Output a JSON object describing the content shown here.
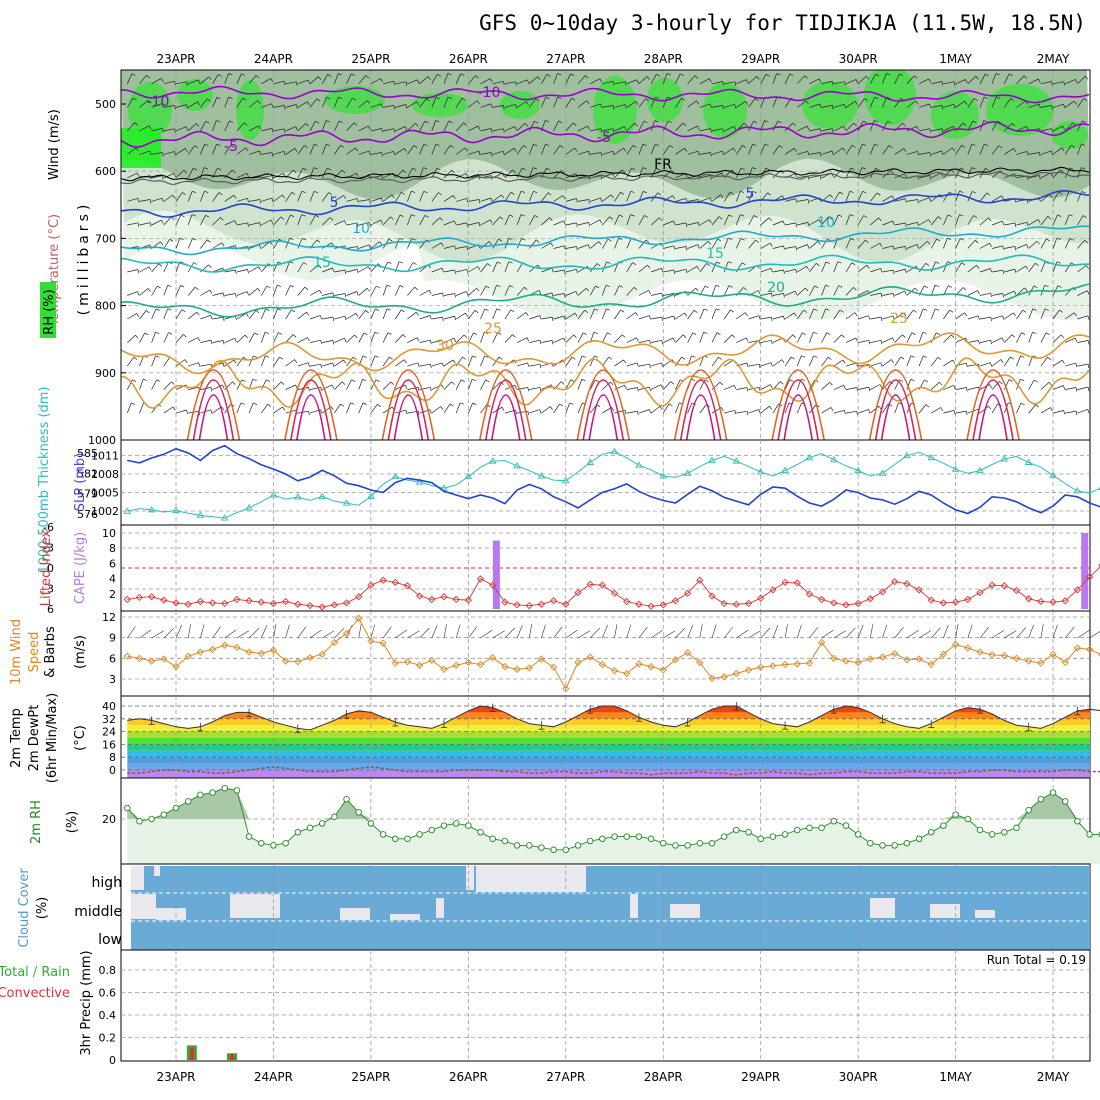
{
  "title": "GFS 0~10day 3-hourly for TIDJIKJA (11.5W, 18.5N)",
  "dates": [
    "23APR",
    "24APR",
    "25APR",
    "26APR",
    "27APR",
    "28APR",
    "29APR",
    "30APR",
    "1MAY",
    "2MAY"
  ],
  "colors": {
    "rh_green": "#33dd33",
    "rh_dark": "#7a9a7a",
    "temp_purple": "#9900cc",
    "temp_blue": "#2244cc",
    "temp_cyan": "#22aacc",
    "temp_teal": "#22aa88",
    "temp_orange": "#dd9933",
    "temp_red": "#dd2255",
    "slp": "#2244cc",
    "thick": "#33bbbb",
    "li": "#dd3333",
    "cape": "#bb77ee",
    "wind": "#dd8822",
    "cloud": "#6aaad6",
    "rh2m": "#228822"
  },
  "panels": {
    "upper": {
      "ylabel_wind": "Wind (m/s)",
      "ylabel_temp": "Temperature (°C)",
      "ylabel_rh": "RH (%)",
      "ylabel_mb": "(millibars)",
      "levels": [
        "500",
        "600",
        "700",
        "800",
        "900",
        "1000"
      ],
      "contour_labels": {
        "m10": "-10",
        "m5": "-5",
        "fr": "FR",
        "p5": "5",
        "p10": "10",
        "p15": "15",
        "p20": "20",
        "p25": "25",
        "p30": "30"
      }
    },
    "slp": {
      "ylabel_thick": "1000-500mb Thickness (dm)",
      "ylabel_slp": "SLP (mb)",
      "thick_ticks": [
        "585",
        "582",
        "579",
        "576"
      ],
      "slp_ticks": [
        "1011",
        "1008",
        "1005",
        "1002"
      ]
    },
    "cape": {
      "ylabel_li": "Lifted Index",
      "ylabel_cape": "CAPE (J/kg)",
      "li_ticks": [
        "-6",
        "-3",
        "0",
        "3",
        "6"
      ],
      "cape_ticks": [
        "10",
        "8",
        "6",
        "4",
        "2"
      ]
    },
    "wind": {
      "ylabel1": "10m Wind",
      "ylabel2": "Speed",
      "ylabel3": "& Barbs",
      "ylabel_unit": "(m/s)",
      "ticks": [
        "12",
        "9",
        "6",
        "3"
      ]
    },
    "temp2m": {
      "ylabel1": "2m Temp",
      "ylabel2": "2m DewPt",
      "ylabel3": "(6hr Min/Max)",
      "ylabel_unit": "(°C)",
      "ticks": [
        "40",
        "32",
        "24",
        "16",
        "8",
        "0"
      ]
    },
    "rh2m": {
      "ylabel": "2m RH",
      "ylabel_unit": "(%)",
      "ticks": [
        "20"
      ]
    },
    "cloud": {
      "ylabel": "Cloud Cover",
      "ylabel_unit": "(%)",
      "levels": [
        "high",
        "middle",
        "low"
      ]
    },
    "precip": {
      "ylabel_total": "Total / Rain",
      "ylabel_conv": "Convective",
      "ylabel_unit": "3hr Precip (mm)",
      "ticks": [
        "0.8",
        "0.6",
        "0.4",
        "0.2",
        "0"
      ],
      "run_total": "Run Total = 0.19"
    }
  },
  "chart_data": {
    "type": "line",
    "x_unit": "3-hourly steps from 22APR 12Z",
    "slp": [
      1010.2,
      1009.8,
      1010.6,
      1011.2,
      1012.1,
      1011.4,
      1010.2,
      1011.8,
      1012.6,
      1011.3,
      1010.5,
      1009.5,
      1008.8,
      1008.0,
      1006.9,
      1007.5,
      1008.6,
      1007.7,
      1006.5,
      1006.1,
      1005.4,
      1005.0,
      1006.6,
      1007.3,
      1007.0,
      1006.6,
      1005.2,
      1004.6,
      1004.0,
      1004.6,
      1004.1,
      1003.2,
      1005.4,
      1006.3,
      1005.6,
      1004.3,
      1003.5,
      1002.5,
      1003.8,
      1005.0,
      1005.6,
      1006.4,
      1005.2,
      1004.3,
      1003.7,
      1003.3,
      1004.7,
      1006.0,
      1005.3,
      1004.2,
      1003.6,
      1003.0,
      1004.7,
      1005.9,
      1005.7,
      1004.4,
      1003.3,
      1002.8,
      1003.9,
      1005.4,
      1005.0,
      1004.1,
      1003.8,
      1003.1,
      1004.0,
      1005.2,
      1004.6,
      1003.3,
      1002.2,
      1001.6,
      1002.6,
      1004.3,
      1004.1,
      1003.5,
      1002.5,
      1001.7,
      1002.8,
      1004.6,
      1004.3,
      1003.3,
      1002.6,
      1002.0,
      1003.2,
      1004.8,
      1004.3,
      1003.1
    ],
    "thickness": [
      576.4,
      576.8,
      576.6,
      576.3,
      576.5,
      576.1,
      575.8,
      575.6,
      575.4,
      576.2,
      576.9,
      577.8,
      578.8,
      578.2,
      578.5,
      578.0,
      578.6,
      577.9,
      577.6,
      577.3,
      578.6,
      580.4,
      581.5,
      581.0,
      580.7,
      580.2,
      579.8,
      580.3,
      581.5,
      582.9,
      583.8,
      583.9,
      583.1,
      582.4,
      581.6,
      581.0,
      580.9,
      582.2,
      583.6,
      584.8,
      585.2,
      584.3,
      583.2,
      582.5,
      581.6,
      581.4,
      582.0,
      583.0,
      583.9,
      584.5,
      583.8,
      583.0,
      582.2,
      581.6,
      582.4,
      583.3,
      584.3,
      584.9,
      584.0,
      583.1,
      582.4,
      581.6,
      582.0,
      583.3,
      584.6,
      585.1,
      584.3,
      583.5,
      582.6,
      582.0,
      582.4,
      583.3,
      584.1,
      584.5,
      583.6,
      582.9,
      581.7,
      580.5,
      579.4,
      579.1,
      579.9,
      580.9,
      581.6,
      580.3,
      578.5,
      577.4
    ],
    "lifted_index": [
      4.6,
      4.3,
      4.2,
      4.7,
      5.1,
      5.3,
      4.9,
      5.1,
      5.2,
      4.6,
      4.8,
      5.0,
      5.2,
      4.9,
      5.3,
      5.5,
      5.7,
      5.4,
      5.1,
      4.2,
      2.5,
      1.8,
      2.1,
      2.6,
      4.1,
      4.6,
      4.2,
      4.6,
      4.7,
      1.6,
      2.5,
      5.0,
      5.4,
      5.5,
      5.3,
      4.8,
      5.3,
      3.6,
      2.4,
      2.5,
      3.7,
      4.9,
      5.3,
      5.6,
      5.4,
      4.8,
      3.7,
      1.8,
      4.1,
      5.2,
      5.3,
      5.2,
      4.4,
      3.2,
      2.1,
      2.2,
      3.8,
      4.6,
      5.1,
      5.4,
      5.2,
      4.5,
      3.5,
      2.0,
      2.3,
      3.2,
      4.7,
      5.1,
      5.0,
      4.6,
      3.6,
      2.5,
      2.6,
      3.3,
      4.5,
      4.9,
      5.0,
      4.8,
      3.2,
      1.3,
      -0.4,
      0.4,
      0.8,
      2.2,
      3.3,
      5.1
    ],
    "cape": [
      {
        "t": 30.3,
        "value": 9.0
      },
      {
        "t": 78.6,
        "value": 10.0
      }
    ],
    "wind_speed": [
      6.3,
      6.0,
      5.6,
      5.9,
      4.8,
      6.3,
      6.9,
      7.3,
      7.9,
      7.6,
      6.9,
      6.7,
      7.2,
      5.6,
      5.5,
      6.1,
      6.6,
      8.3,
      9.6,
      11.8,
      8.5,
      8.2,
      5.3,
      5.5,
      5.0,
      5.7,
      4.4,
      5.0,
      5.4,
      5.1,
      6.1,
      4.8,
      4.4,
      4.6,
      5.9,
      4.7,
      1.6,
      5.4,
      6.2,
      5.1,
      4.2,
      3.8,
      5.2,
      4.8,
      4.3,
      5.8,
      6.8,
      5.4,
      3.1,
      3.3,
      3.8,
      4.3,
      4.7,
      4.9,
      5.1,
      5.2,
      5.3,
      8.3,
      6.0,
      5.6,
      5.4,
      5.9,
      6.2,
      6.7,
      5.8,
      5.9,
      5.1,
      6.6,
      8.0,
      7.5,
      6.9,
      6.5,
      6.4,
      6.0,
      5.6,
      5.3,
      6.6,
      5.4,
      7.5,
      7.3,
      6.5,
      6.3,
      6.1,
      5.7,
      4.6,
      4.9
    ],
    "temp_2m": [
      31,
      32,
      31,
      29,
      27,
      26,
      27,
      30,
      34,
      36,
      36,
      33,
      30,
      28,
      26,
      25,
      28,
      31,
      35,
      37,
      36,
      33,
      30,
      28,
      27,
      26,
      29,
      33,
      37,
      40,
      39,
      36,
      32,
      29,
      28,
      27,
      30,
      34,
      38,
      40,
      40,
      37,
      33,
      30,
      28,
      27,
      30,
      34,
      38,
      40,
      40,
      36,
      32,
      29,
      28,
      27,
      30,
      34,
      38,
      40,
      39,
      36,
      32,
      29,
      27,
      26,
      29,
      33,
      37,
      39,
      38,
      35,
      31,
      28,
      27,
      26,
      29,
      33,
      37,
      38,
      37,
      34,
      31,
      29,
      27,
      26
    ],
    "dewpoint_2m": [
      -2,
      -2,
      -1,
      0,
      0,
      -1,
      -1,
      -2,
      -2,
      -1,
      0,
      1,
      2,
      1,
      0,
      -1,
      -1,
      -1,
      0,
      1,
      2,
      1,
      0,
      -1,
      -1,
      -1,
      -1,
      0,
      0,
      0,
      0,
      -1,
      -1,
      -2,
      -2,
      -1,
      -1,
      -2,
      -2,
      -1,
      -1,
      -2,
      -2,
      -3,
      -2,
      -2,
      -2,
      -1,
      -2,
      -2,
      -3,
      -2,
      -2,
      -1,
      -2,
      -2,
      -3,
      -2,
      -2,
      -1,
      -1,
      -2,
      -2,
      -2,
      -1,
      -1,
      -2,
      -2,
      -2,
      -1,
      -1,
      0,
      0,
      -1,
      -1,
      -1,
      -1,
      0,
      0,
      -1,
      -1,
      -1,
      -1,
      0,
      0,
      -1
    ],
    "rh_2m": [
      25,
      19,
      20,
      22,
      25,
      28,
      31,
      32,
      34,
      33,
      12,
      9,
      8,
      9,
      14,
      16,
      18,
      21,
      29,
      23,
      18,
      13,
      11,
      11,
      13,
      15,
      17,
      18,
      17,
      14,
      11,
      10,
      8,
      8,
      7,
      6,
      6,
      8,
      10,
      11,
      12,
      12,
      12,
      11,
      9,
      8,
      8,
      9,
      9,
      12,
      15,
      14,
      11,
      12,
      13,
      15,
      16,
      16,
      19,
      17,
      13,
      9,
      8,
      8,
      9,
      11,
      14,
      17,
      22,
      20,
      15,
      13,
      14,
      16,
      24,
      29,
      32,
      28,
      19,
      13,
      13,
      15,
      20,
      22,
      24,
      28
    ],
    "precip_total": [
      {
        "t": 5.3,
        "value": 0.13
      },
      {
        "t": 8.6,
        "value": 0.06
      }
    ],
    "precip_conv": [
      {
        "t": 5.3,
        "value": 0.11
      },
      {
        "t": 8.6,
        "value": 0.05
      }
    ]
  }
}
